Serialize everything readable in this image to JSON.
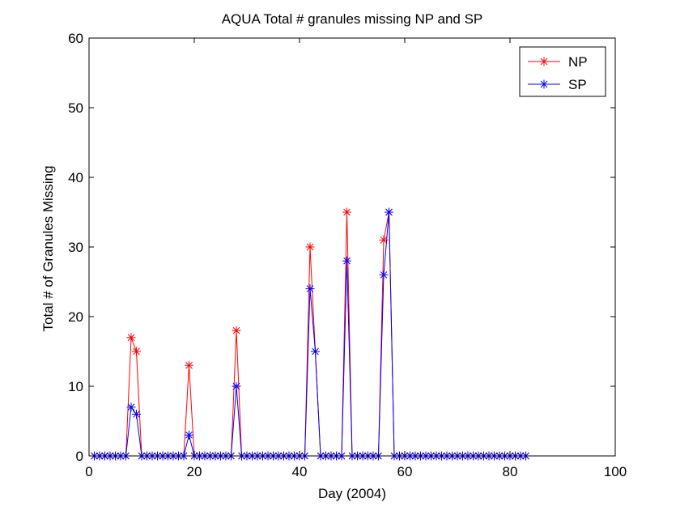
{
  "chart_data": {
    "type": "line",
    "title": "AQUA Total # granules missing NP and SP",
    "xlabel": "Day (2004)",
    "ylabel": "Total # of Granules Missing",
    "xlim": [
      0,
      100
    ],
    "ylim": [
      0,
      60
    ],
    "xticks": [
      0,
      20,
      40,
      60,
      80,
      100
    ],
    "yticks": [
      0,
      10,
      20,
      30,
      40,
      50,
      60
    ],
    "xtick_labels": [
      "0",
      "20",
      "40",
      "60",
      "80",
      "100"
    ],
    "ytick_labels": [
      "0",
      "10",
      "20",
      "30",
      "40",
      "50",
      "60"
    ],
    "grid": false,
    "legend_position": "top-right",
    "marker": "asterisk",
    "series": [
      {
        "name": "NP",
        "color": "#ff0000",
        "points": [
          [
            1,
            0
          ],
          [
            2,
            0
          ],
          [
            3,
            0
          ],
          [
            4,
            0
          ],
          [
            5,
            0
          ],
          [
            6,
            0
          ],
          [
            7,
            0
          ],
          [
            8,
            17
          ],
          [
            9,
            15
          ],
          [
            10,
            0
          ],
          [
            11,
            0
          ],
          [
            12,
            0
          ],
          [
            13,
            0
          ],
          [
            14,
            0
          ],
          [
            15,
            0
          ],
          [
            16,
            0
          ],
          [
            17,
            0
          ],
          [
            18,
            0
          ],
          [
            19,
            13
          ],
          [
            20,
            0
          ],
          [
            21,
            0
          ],
          [
            22,
            0
          ],
          [
            23,
            0
          ],
          [
            24,
            0
          ],
          [
            25,
            0
          ],
          [
            26,
            0
          ],
          [
            27,
            0
          ],
          [
            28,
            18
          ],
          [
            29,
            0
          ],
          [
            30,
            0
          ],
          [
            31,
            0
          ],
          [
            32,
            0
          ],
          [
            33,
            0
          ],
          [
            34,
            0
          ],
          [
            35,
            0
          ],
          [
            36,
            0
          ],
          [
            37,
            0
          ],
          [
            38,
            0
          ],
          [
            39,
            0
          ],
          [
            40,
            0
          ],
          [
            41,
            0
          ],
          [
            42,
            30
          ],
          [
            44,
            0
          ],
          [
            45,
            0
          ],
          [
            46,
            0
          ],
          [
            47,
            0
          ],
          [
            48,
            0
          ],
          [
            49,
            35
          ],
          [
            50,
            0
          ],
          [
            51,
            0
          ],
          [
            52,
            0
          ],
          [
            53,
            0
          ],
          [
            54,
            0
          ],
          [
            55,
            0
          ],
          [
            56,
            31
          ],
          [
            57,
            35
          ],
          [
            58,
            0
          ],
          [
            59,
            0
          ],
          [
            60,
            0
          ],
          [
            61,
            0
          ],
          [
            62,
            0
          ],
          [
            63,
            0
          ],
          [
            64,
            0
          ],
          [
            65,
            0
          ],
          [
            66,
            0
          ],
          [
            67,
            0
          ],
          [
            68,
            0
          ],
          [
            69,
            0
          ],
          [
            70,
            0
          ],
          [
            71,
            0
          ],
          [
            72,
            0
          ],
          [
            73,
            0
          ],
          [
            74,
            0
          ],
          [
            75,
            0
          ],
          [
            76,
            0
          ],
          [
            77,
            0
          ],
          [
            78,
            0
          ],
          [
            79,
            0
          ],
          [
            80,
            0
          ],
          [
            81,
            0
          ],
          [
            82,
            0
          ],
          [
            83,
            0
          ]
        ]
      },
      {
        "name": "SP",
        "color": "#0000ff",
        "points": [
          [
            1,
            0
          ],
          [
            2,
            0
          ],
          [
            3,
            0
          ],
          [
            4,
            0
          ],
          [
            5,
            0
          ],
          [
            6,
            0
          ],
          [
            7,
            0
          ],
          [
            8,
            7
          ],
          [
            9,
            6
          ],
          [
            10,
            0
          ],
          [
            11,
            0
          ],
          [
            12,
            0
          ],
          [
            13,
            0
          ],
          [
            14,
            0
          ],
          [
            15,
            0
          ],
          [
            16,
            0
          ],
          [
            17,
            0
          ],
          [
            18,
            0
          ],
          [
            19,
            3
          ],
          [
            20,
            0
          ],
          [
            21,
            0
          ],
          [
            22,
            0
          ],
          [
            23,
            0
          ],
          [
            24,
            0
          ],
          [
            25,
            0
          ],
          [
            26,
            0
          ],
          [
            27,
            0
          ],
          [
            28,
            10
          ],
          [
            29,
            0
          ],
          [
            30,
            0
          ],
          [
            31,
            0
          ],
          [
            32,
            0
          ],
          [
            33,
            0
          ],
          [
            34,
            0
          ],
          [
            35,
            0
          ],
          [
            36,
            0
          ],
          [
            37,
            0
          ],
          [
            38,
            0
          ],
          [
            39,
            0
          ],
          [
            40,
            0
          ],
          [
            41,
            0
          ],
          [
            42,
            24
          ],
          [
            43,
            15
          ],
          [
            44,
            0
          ],
          [
            45,
            0
          ],
          [
            46,
            0
          ],
          [
            47,
            0
          ],
          [
            48,
            0
          ],
          [
            49,
            28
          ],
          [
            50,
            0
          ],
          [
            51,
            0
          ],
          [
            52,
            0
          ],
          [
            53,
            0
          ],
          [
            54,
            0
          ],
          [
            55,
            0
          ],
          [
            56,
            26
          ],
          [
            57,
            35
          ],
          [
            58,
            0
          ],
          [
            59,
            0
          ],
          [
            60,
            0
          ],
          [
            61,
            0
          ],
          [
            62,
            0
          ],
          [
            63,
            0
          ],
          [
            64,
            0
          ],
          [
            65,
            0
          ],
          [
            66,
            0
          ],
          [
            67,
            0
          ],
          [
            68,
            0
          ],
          [
            69,
            0
          ],
          [
            70,
            0
          ],
          [
            71,
            0
          ],
          [
            72,
            0
          ],
          [
            73,
            0
          ],
          [
            74,
            0
          ],
          [
            75,
            0
          ],
          [
            76,
            0
          ],
          [
            77,
            0
          ],
          [
            78,
            0
          ],
          [
            79,
            0
          ],
          [
            80,
            0
          ],
          [
            81,
            0
          ],
          [
            82,
            0
          ],
          [
            83,
            0
          ]
        ]
      }
    ]
  }
}
